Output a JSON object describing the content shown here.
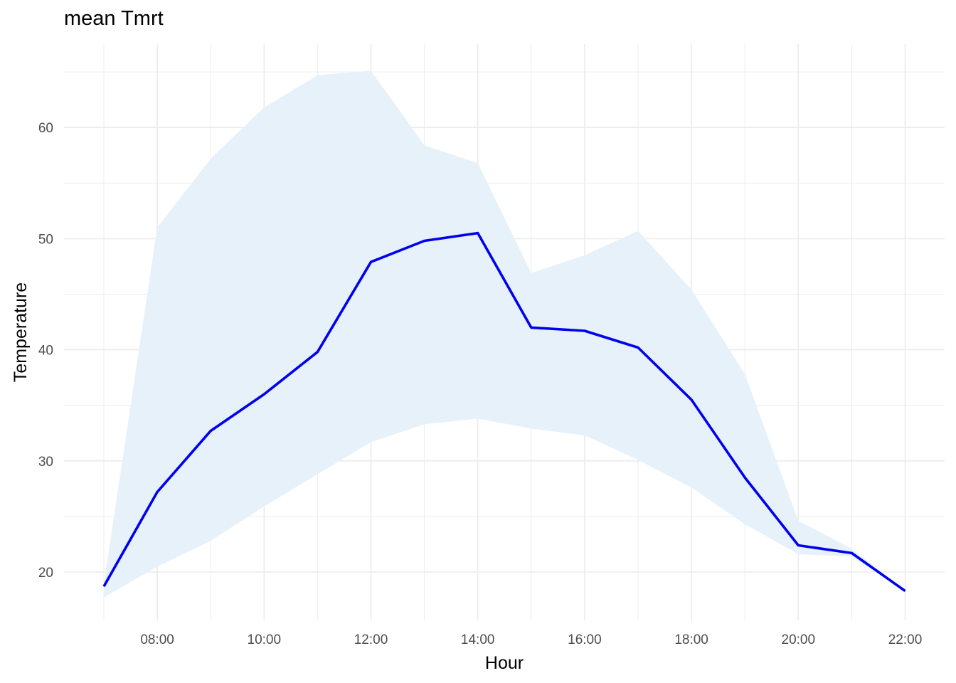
{
  "chart_data": {
    "type": "line",
    "title": "mean Tmrt",
    "xlabel": "Hour",
    "ylabel": "Temperature",
    "x": [
      "07:00",
      "08:00",
      "09:00",
      "10:00",
      "11:00",
      "12:00",
      "13:00",
      "14:00",
      "15:00",
      "16:00",
      "17:00",
      "18:00",
      "19:00",
      "20:00",
      "21:00",
      "22:00"
    ],
    "x_tick_labels": [
      "08:00",
      "10:00",
      "12:00",
      "14:00",
      "16:00",
      "18:00",
      "20:00",
      "22:00"
    ],
    "y_ticks": [
      20,
      30,
      40,
      50,
      60
    ],
    "ylim": [
      15.5,
      67
    ],
    "series": [
      {
        "values": [
          18.7,
          27.2,
          32.7,
          36.0,
          39.8,
          47.9,
          49.8,
          50.5,
          42.0,
          41.7,
          40.2,
          35.5,
          28.5,
          22.4,
          21.7,
          18.3
        ],
        "color": "#0000ee"
      }
    ],
    "ribbon": {
      "upper": [
        18.9,
        51.0,
        57.2,
        61.8,
        64.7,
        65.1,
        58.4,
        56.8,
        46.9,
        48.5,
        50.7,
        45.4,
        37.8,
        24.6,
        22.1,
        18.3
      ],
      "lower": [
        17.7,
        20.5,
        22.8,
        25.9,
        28.8,
        31.7,
        33.3,
        33.8,
        32.9,
        32.3,
        30.1,
        27.6,
        24.3,
        21.6,
        21.4,
        18.3
      ],
      "color": "#e6f1f9"
    },
    "grid": true,
    "legend": "none",
    "background": "#ffffff",
    "grid_color": "#ebebeb"
  }
}
